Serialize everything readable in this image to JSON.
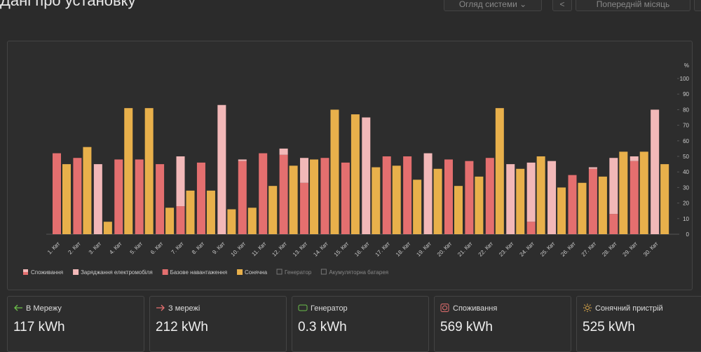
{
  "header": {
    "title": "Дані про установку",
    "view_select": "Огляд системи",
    "period_button": "Попередній місяць"
  },
  "chart_data": {
    "type": "bar",
    "categories": [
      "1. Квт",
      "2. Квт",
      "3. Квт",
      "4. Квт",
      "5. Квт",
      "6. Квт",
      "7. Квт",
      "8. Квт",
      "9. Квт",
      "10. Квт",
      "11. Квт",
      "12. Квт",
      "13. Квт",
      "14. Квт",
      "15. Квт",
      "16. Квт",
      "17. Квт",
      "18. Квт",
      "19. Квт",
      "20. Квт",
      "21. Квт",
      "22. Квт",
      "23. Квт",
      "24. Квт",
      "25. Квт",
      "26. Квт",
      "27. Квт",
      "28. Квт",
      "29. Квт",
      "30. Квт"
    ],
    "stack_label": "Споживання",
    "series": [
      {
        "name": "Заряджання електромобіля",
        "color": "#f2b8b8",
        "stack": true,
        "values": [
          0,
          0,
          45,
          0,
          0,
          0,
          32,
          0,
          83,
          1,
          0,
          4,
          16,
          0,
          0,
          75,
          0,
          0,
          52,
          0,
          0,
          0,
          45,
          38,
          47,
          0,
          1,
          36,
          3,
          80
        ]
      },
      {
        "name": "Базове навантаження",
        "color": "#e46f6f",
        "stack": true,
        "values": [
          52,
          49,
          0,
          48,
          48,
          45,
          18,
          46,
          0,
          47,
          52,
          51,
          33,
          49,
          46,
          0,
          50,
          50,
          0,
          48,
          47,
          49,
          0,
          8,
          0,
          38,
          42,
          13,
          47,
          0
        ]
      },
      {
        "name": "Сонячна",
        "color": "#e8b04b",
        "stack": false,
        "values": [
          45,
          56,
          8,
          81,
          81,
          17,
          28,
          28,
          16,
          17,
          31,
          44,
          48,
          80,
          77,
          43,
          44,
          35,
          42,
          31,
          37,
          81,
          42,
          50,
          30,
          33,
          37,
          53,
          53,
          45
        ]
      }
    ],
    "other_legend": [
      "Генератор",
      "Акумуляторна батарея"
    ],
    "y_unit": "%",
    "ylim": [
      0,
      100
    ],
    "yticks": [
      0,
      10,
      20,
      30,
      40,
      50,
      60,
      70,
      80,
      90,
      100
    ]
  },
  "cards": [
    {
      "title": "В Мережу",
      "value": "117 kWh"
    },
    {
      "title": "З мережі",
      "value": "212 kWh"
    },
    {
      "title": "Генератор",
      "value": "0.3 kWh"
    },
    {
      "title": "Споживання",
      "value": "569 kWh"
    },
    {
      "title": "Сонячний пристрій",
      "value": "525 kWh"
    }
  ]
}
